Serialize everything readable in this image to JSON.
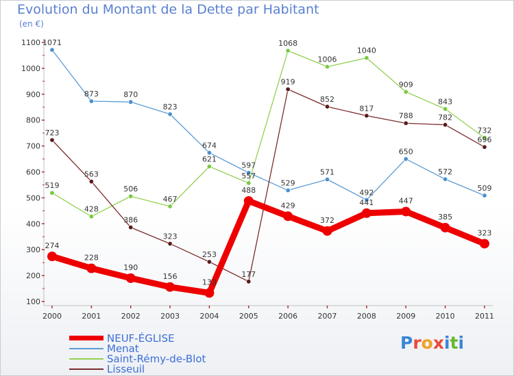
{
  "header": {
    "title": "Evolution du Montant de la Dette par Habitant",
    "unit": "(en €)"
  },
  "logo": {
    "text": "Proxiti",
    "letters": [
      "P",
      "r",
      "o",
      "x",
      "i",
      "t",
      "i"
    ]
  },
  "chart_data": {
    "type": "line",
    "title": "Evolution du Montant de la Dette par Habitant",
    "subtitle": "(en €)",
    "xlabel": "",
    "ylabel": "",
    "x": [
      "2000",
      "2001",
      "2002",
      "2003",
      "2004",
      "2005",
      "2006",
      "2007",
      "2008",
      "2009",
      "2010",
      "2011"
    ],
    "ylim": [
      100,
      1100
    ],
    "yticks": [
      100,
      200,
      300,
      400,
      500,
      600,
      700,
      800,
      900,
      1000,
      1100
    ],
    "grid": false,
    "legend_position": "bottom-left",
    "series": [
      {
        "name": "Menat",
        "color": "#5b9bd5",
        "values": [
          1071,
          873,
          870,
          823,
          674,
          597,
          529,
          571,
          492,
          650,
          572,
          509
        ]
      },
      {
        "name": "Saint-Rémy-de-Blot",
        "color": "#92d050",
        "values": [
          519,
          428,
          506,
          467,
          621,
          557,
          1068,
          1006,
          1040,
          909,
          843,
          732
        ]
      },
      {
        "name": "Lisseuil",
        "color": "#7b2c2c",
        "values": [
          723,
          563,
          386,
          323,
          253,
          177,
          919,
          852,
          817,
          788,
          782,
          696
        ]
      },
      {
        "name": "NEUF-ÉGLISE",
        "color": "#ee0000",
        "values": [
          274,
          228,
          190,
          156,
          133,
          488,
          429,
          372,
          441,
          447,
          385,
          323
        ]
      }
    ],
    "legend_order": [
      "NEUF-ÉGLISE",
      "Menat",
      "Saint-Rémy-de-Blot",
      "Lisseuil"
    ]
  }
}
